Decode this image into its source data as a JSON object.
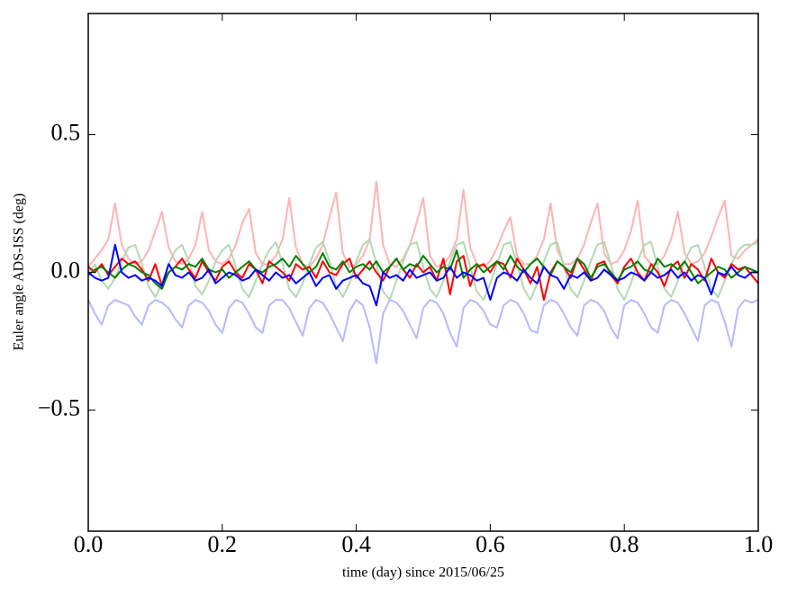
{
  "chart_data": {
    "type": "line",
    "xlabel": "time (day) since 2015/06/25",
    "ylabel": "Euler angle ADS-ISS (deg)",
    "xlim": [
      0,
      1
    ],
    "ylim": [
      -0.94,
      0.94
    ],
    "xticks": [
      {
        "value": 0,
        "label": "0.0"
      },
      0.2,
      0.4,
      0.6,
      0.8,
      {
        "value": 1,
        "label": "1.0"
      }
    ],
    "yticks": [
      {
        "value": -0.5,
        "label": "−0.5"
      },
      {
        "value": 0,
        "label": "0.0"
      },
      0.5
    ],
    "grid": false,
    "x": [
      0,
      0.01,
      0.02,
      0.03,
      0.04,
      0.05,
      0.06,
      0.07,
      0.08,
      0.09,
      0.1,
      0.11,
      0.12,
      0.13,
      0.14,
      0.15,
      0.16,
      0.17,
      0.18,
      0.19,
      0.2,
      0.21,
      0.22,
      0.23,
      0.24,
      0.25,
      0.26,
      0.27,
      0.28,
      0.29,
      0.3,
      0.31,
      0.32,
      0.33,
      0.34,
      0.35,
      0.36,
      0.37,
      0.38,
      0.39,
      0.4,
      0.41,
      0.42,
      0.43,
      0.44,
      0.45,
      0.46,
      0.47,
      0.48,
      0.49,
      0.5,
      0.51,
      0.52,
      0.53,
      0.54,
      0.55,
      0.56,
      0.57,
      0.58,
      0.59,
      0.6,
      0.61,
      0.62,
      0.63,
      0.64,
      0.65,
      0.66,
      0.67,
      0.68,
      0.69,
      0.7,
      0.71,
      0.72,
      0.73,
      0.74,
      0.75,
      0.76,
      0.77,
      0.78,
      0.79,
      0.8,
      0.81,
      0.82,
      0.83,
      0.84,
      0.85,
      0.86,
      0.87,
      0.88,
      0.89,
      0.9,
      0.91,
      0.92,
      0.93,
      0.94,
      0.95,
      0.96,
      0.97,
      0.98,
      0.99,
      1
    ],
    "series": [
      {
        "color": "#ffb3b3",
        "values": [
          0.02,
          0.05,
          0.08,
          0.12,
          0.25,
          0.1,
          0.05,
          0.03,
          0.04,
          0.08,
          0.15,
          0.22,
          0.09,
          0.04,
          0.03,
          0.05,
          0.1,
          0.22,
          0.08,
          0.04,
          0.03,
          0.05,
          0.1,
          0.18,
          0.23,
          0.07,
          0.03,
          0.03,
          0.06,
          0.12,
          0.27,
          0.09,
          0.03,
          0.02,
          0.05,
          0.1,
          0.2,
          0.29,
          0.07,
          0.02,
          0.03,
          0.06,
          0.12,
          0.33,
          0.1,
          0.03,
          0.02,
          0.05,
          0.1,
          0.18,
          0.27,
          0.06,
          0.02,
          0.03,
          0.06,
          0.12,
          0.3,
          0.09,
          0.03,
          0.02,
          0.04,
          0.09,
          0.15,
          0.2,
          0.06,
          0.03,
          0.03,
          0.06,
          0.12,
          0.25,
          0.08,
          0.03,
          0.03,
          0.05,
          0.1,
          0.18,
          0.25,
          0.07,
          0.03,
          0.04,
          0.08,
          0.15,
          0.26,
          0.06,
          0.03,
          0.03,
          0.06,
          0.12,
          0.22,
          0.07,
          0.03,
          0.04,
          0.07,
          0.13,
          0.2,
          0.26,
          0.06,
          0.05,
          0.08,
          0.1,
          0.12
        ]
      },
      {
        "color": "#b3d9b3",
        "values": [
          0.0,
          0.03,
          -0.03,
          -0.06,
          -0.02,
          0.04,
          0.09,
          0.1,
          0.03,
          -0.05,
          -0.09,
          -0.04,
          0.03,
          0.08,
          0.1,
          0.04,
          -0.05,
          -0.08,
          -0.03,
          0.04,
          0.08,
          0.1,
          0.02,
          -0.06,
          -0.09,
          -0.03,
          0.03,
          0.08,
          0.11,
          0.03,
          -0.06,
          -0.09,
          -0.04,
          0.03,
          0.09,
          0.11,
          0.04,
          -0.05,
          -0.09,
          -0.04,
          0.04,
          0.1,
          0.12,
          0.03,
          -0.07,
          -0.1,
          -0.03,
          0.04,
          0.1,
          0.11,
          0.02,
          -0.06,
          -0.09,
          -0.03,
          0.04,
          0.1,
          0.11,
          0.02,
          -0.07,
          -0.1,
          -0.04,
          0.03,
          0.1,
          0.11,
          0.03,
          -0.06,
          -0.1,
          -0.04,
          0.04,
          0.1,
          0.11,
          0.02,
          -0.06,
          -0.09,
          -0.03,
          0.04,
          0.1,
          0.11,
          0.03,
          -0.06,
          -0.1,
          -0.04,
          0.04,
          0.1,
          0.11,
          0.02,
          -0.06,
          -0.09,
          -0.03,
          0.04,
          0.09,
          0.1,
          0.02,
          -0.06,
          -0.09,
          -0.03,
          0.03,
          0.08,
          0.1,
          0.1,
          0.11
        ]
      },
      {
        "color": "#b8b8ff",
        "values": [
          -0.1,
          -0.15,
          -0.19,
          -0.12,
          -0.1,
          -0.11,
          -0.12,
          -0.16,
          -0.19,
          -0.12,
          -0.1,
          -0.11,
          -0.13,
          -0.17,
          -0.2,
          -0.12,
          -0.1,
          -0.11,
          -0.14,
          -0.19,
          -0.22,
          -0.13,
          -0.1,
          -0.11,
          -0.15,
          -0.2,
          -0.22,
          -0.12,
          -0.1,
          -0.1,
          -0.13,
          -0.18,
          -0.23,
          -0.13,
          -0.1,
          -0.11,
          -0.15,
          -0.2,
          -0.25,
          -0.14,
          -0.1,
          -0.12,
          -0.2,
          -0.33,
          -0.15,
          -0.1,
          -0.11,
          -0.14,
          -0.19,
          -0.24,
          -0.13,
          -0.1,
          -0.11,
          -0.15,
          -0.22,
          -0.27,
          -0.13,
          -0.1,
          -0.11,
          -0.14,
          -0.19,
          -0.2,
          -0.12,
          -0.1,
          -0.11,
          -0.15,
          -0.21,
          -0.22,
          -0.12,
          -0.1,
          -0.11,
          -0.15,
          -0.2,
          -0.23,
          -0.12,
          -0.1,
          -0.11,
          -0.14,
          -0.2,
          -0.24,
          -0.12,
          -0.1,
          -0.11,
          -0.15,
          -0.2,
          -0.22,
          -0.12,
          -0.1,
          -0.11,
          -0.15,
          -0.2,
          -0.25,
          -0.12,
          -0.1,
          -0.11,
          -0.18,
          -0.27,
          -0.13,
          -0.1,
          -0.11,
          -0.1
        ]
      },
      {
        "color": "#ff0000",
        "values": [
          0.02,
          0.0,
          0.03,
          -0.01,
          0.02,
          0.05,
          0.03,
          0.04,
          0.01,
          -0.03,
          0.03,
          -0.05,
          0.0,
          0.02,
          0.05,
          0.01,
          -0.02,
          0.04,
          0.0,
          -0.03,
          0.02,
          0.04,
          0.0,
          -0.02,
          0.03,
          0.01,
          -0.04,
          0.04,
          0.02,
          0.0,
          -0.03,
          0.03,
          0.01,
          0.02,
          -0.02,
          0.04,
          0.0,
          -0.01,
          0.03,
          0.05,
          -0.02,
          0.01,
          0.04,
          0.0,
          -0.03,
          0.02,
          0.05,
          0.01,
          -0.02,
          0.03,
          0.0,
          0.02,
          -0.03,
          0.05,
          -0.08,
          0.04,
          0.06,
          -0.05,
          0.02,
          0.03,
          0.0,
          0.04,
          0.03,
          -0.02,
          0.05,
          0.01,
          -0.04,
          0.02,
          -0.1,
          0.0,
          0.04,
          0.02,
          -0.02,
          0.05,
          0.01,
          -0.03,
          0.03,
          0.04,
          -0.01,
          -0.04,
          0.02,
          0.05,
          0.0,
          -0.03,
          0.03,
          0.0,
          -0.05,
          0.02,
          0.04,
          -0.02,
          0.03,
          0.01,
          -0.03,
          0.05,
          0.0,
          -0.02,
          0.03,
          0.01,
          0.02,
          -0.01,
          -0.04
        ]
      },
      {
        "color": "#008000",
        "values": [
          -0.01,
          0.01,
          0.02,
          0.0,
          -0.02,
          0.01,
          0.03,
          0.02,
          0.0,
          -0.01,
          -0.04,
          -0.06,
          0.0,
          0.02,
          0.01,
          0.03,
          0.02,
          0.05,
          0.01,
          0.0,
          0.01,
          -0.02,
          0.0,
          0.02,
          0.04,
          0.01,
          0.0,
          0.02,
          0.03,
          0.05,
          0.02,
          0.06,
          0.03,
          0.0,
          0.02,
          0.07,
          0.02,
          0.01,
          0.04,
          0.0,
          0.02,
          0.03,
          0.01,
          0.04,
          0.0,
          0.02,
          0.05,
          0.01,
          0.03,
          0.02,
          0.06,
          0.03,
          0.0,
          0.02,
          0.01,
          0.08,
          -0.02,
          0.01,
          0.03,
          0.0,
          0.02,
          0.04,
          0.01,
          0.06,
          0.02,
          0.0,
          0.03,
          0.05,
          0.02,
          -0.01,
          0.04,
          0.02,
          0.0,
          0.05,
          0.03,
          -0.02,
          0.02,
          0.03,
          0.0,
          -0.03,
          0.01,
          0.02,
          0.04,
          0.01,
          0.0,
          0.05,
          0.02,
          0.03,
          0.01,
          0.04,
          0.0,
          -0.04,
          -0.02,
          0.0,
          0.02,
          0.01,
          -0.02,
          0.0,
          0.02,
          0.01,
          0.0
        ]
      },
      {
        "color": "#0000ff",
        "values": [
          0.0,
          -0.02,
          -0.03,
          -0.02,
          0.1,
          0.0,
          -0.02,
          -0.01,
          -0.03,
          -0.02,
          -0.03,
          -0.05,
          0.03,
          -0.01,
          -0.02,
          0.0,
          -0.03,
          -0.02,
          0.01,
          -0.04,
          -0.02,
          0.0,
          -0.01,
          -0.03,
          -0.02,
          0.01,
          -0.01,
          -0.03,
          0.0,
          -0.02,
          -0.01,
          -0.04,
          -0.02,
          0.0,
          -0.05,
          -0.02,
          -0.01,
          -0.06,
          -0.03,
          -0.02,
          -0.01,
          -0.04,
          -0.05,
          -0.12,
          0.0,
          -0.02,
          -0.01,
          -0.03,
          0.01,
          -0.02,
          -0.01,
          0.0,
          -0.03,
          -0.02,
          0.02,
          -0.02,
          0.0,
          -0.01,
          -0.03,
          -0.02,
          -0.1,
          -0.02,
          0.0,
          -0.01,
          -0.03,
          0.01,
          -0.02,
          -0.04,
          0.02,
          -0.01,
          -0.02,
          -0.06,
          -0.01,
          -0.02,
          0.0,
          -0.03,
          -0.02,
          0.01,
          -0.01,
          -0.03,
          -0.02,
          0.0,
          -0.01,
          -0.03,
          0.0,
          -0.02,
          -0.01,
          0.01,
          -0.02,
          0.0,
          -0.03,
          -0.01,
          -0.02,
          -0.08,
          0.0,
          -0.01,
          0.02,
          -0.01,
          -0.02,
          0.0,
          0.0
        ]
      }
    ]
  }
}
